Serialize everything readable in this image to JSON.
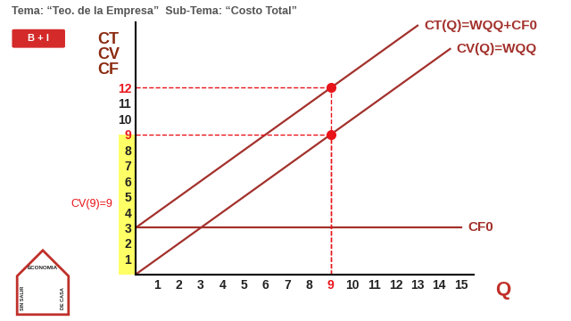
{
  "header": "Tema: “Teo. de la Empresa”  Sub-Tema: “Costo Total”",
  "badge": "B + I",
  "logo": {
    "texts": [
      "ECONOMIA",
      "SIN SALIR",
      "DE CASA"
    ]
  },
  "chart_data": {
    "type": "line",
    "xlabel": "Q",
    "ylabel": "CT\nCV\nCF",
    "xlim": [
      0,
      15.6
    ],
    "ylim": [
      0,
      16.2
    ],
    "xticks": [
      1,
      2,
      3,
      4,
      5,
      6,
      7,
      8,
      9,
      10,
      11,
      12,
      13,
      14,
      15
    ],
    "yticks": [
      1,
      2,
      3,
      4,
      5,
      6,
      7,
      8,
      9,
      10,
      11,
      12
    ],
    "series": [
      {
        "name": "CT(Q)=WQQ+CF0",
        "color": "#a3312c",
        "x": [
          0,
          13
        ],
        "values": [
          3,
          16
        ]
      },
      {
        "name": "CV(Q)=WQQ",
        "color": "#a3312c",
        "x": [
          0,
          14.5
        ],
        "values": [
          0,
          14.5
        ]
      },
      {
        "name": "CF0",
        "color": "#a3312c",
        "x": [
          0,
          15
        ],
        "values": [
          3,
          3
        ]
      }
    ],
    "points": {
      "x": [
        9,
        9
      ],
      "values": [
        12,
        9
      ],
      "color": "#e8141a",
      "marker": "o",
      "line_style": "dashed"
    },
    "annotation": {
      "text": "CV(9)=9",
      "color": "#e8141a"
    },
    "highlight": {
      "from": 0,
      "to": 9,
      "color": "#ffff66"
    }
  }
}
